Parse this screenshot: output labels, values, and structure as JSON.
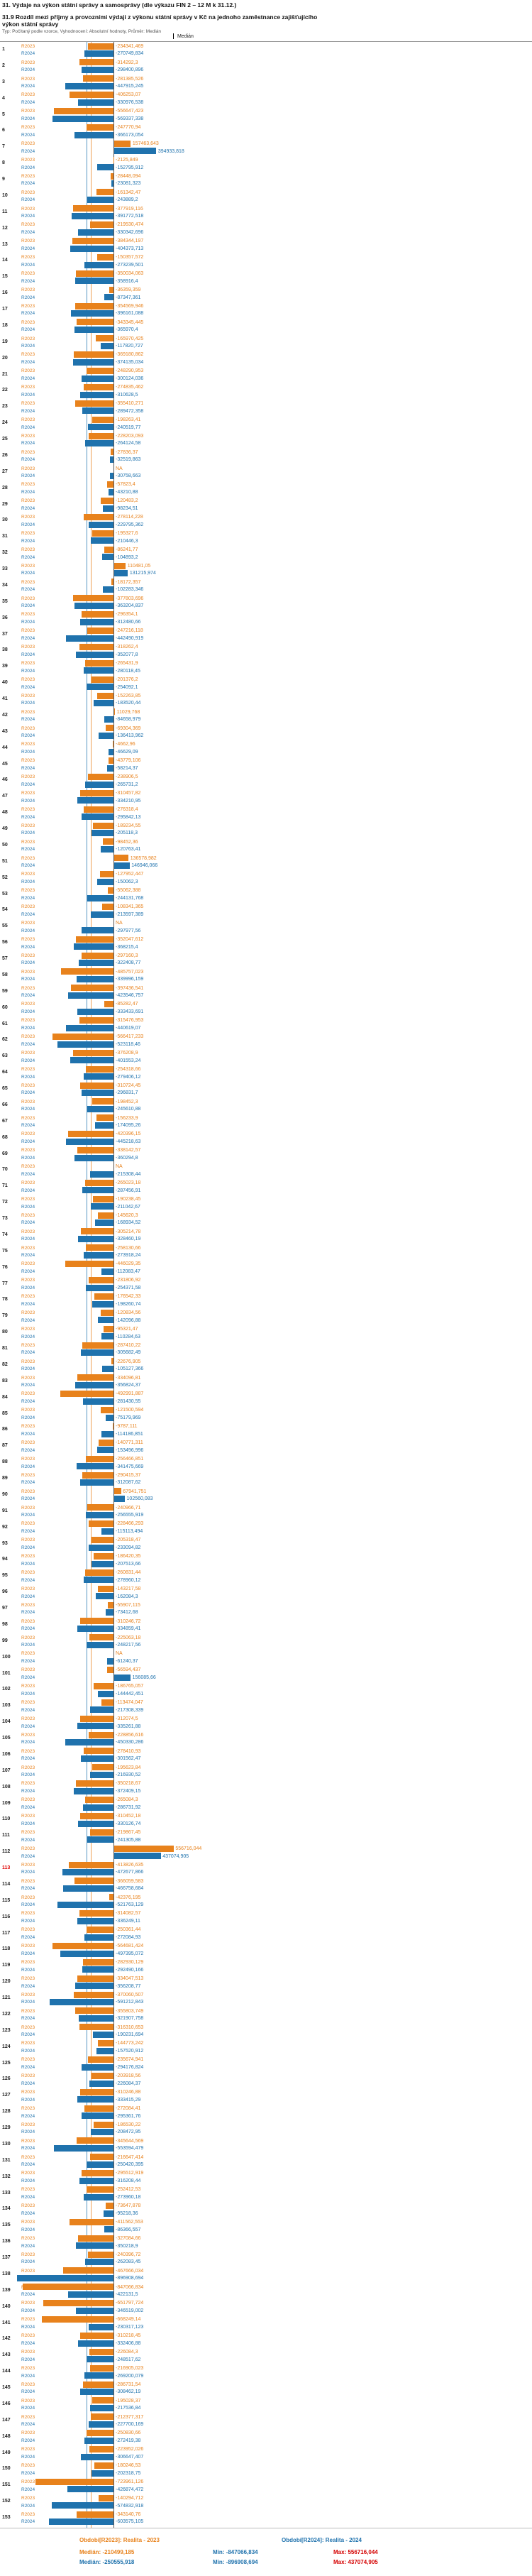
{
  "header": {
    "title_line1": "31. Výdaje na výkon státní správy a samosprávy (dle výkazu FIN 2 – 12 M k 31.12.)",
    "title_line2": "31.9 Rozdíl mezi příjmy a provozními výdaji z výkonu státní správy v Kč na jednoho zaměstnance zajišťujícího výkon státní správy",
    "subtitle": "Typ: Počítaný podle vzorce, Vyhodnocení: Absolutní hodnoty, Průměr: Medián"
  },
  "legend": {
    "median_label": "Medián"
  },
  "colors": {
    "r2023": "#e8821c",
    "r2024": "#1f72ad",
    "highlight_row": "#e00000",
    "min_text": "#1f72ad",
    "max_text": "#d40000",
    "axis": "#555555"
  },
  "footer": {
    "median_prefix": "Medián: ",
    "min_prefix": "Min: ",
    "max_prefix": "Max: "
  },
  "chart_data": {
    "type": "bar",
    "orientation": "horizontal",
    "title": "31.9 Rozdíl mezi příjmy a provozními výdaji z výkonu státní správy v Kč na jednoho zaměstnance zajišťujícího výkon státní správy",
    "unit": "Kč",
    "xlim": [
      -900000,
      600000
    ],
    "zero_line": 0,
    "grid": "median-lines",
    "legend_position": "bottom",
    "series_labels": [
      "R2023",
      "R2024"
    ],
    "highlighted_row": 113,
    "na_text": "NA",
    "summary": {
      "r2023": {
        "label": "Období[R2023]: Realita - 2023",
        "median": -210499.185,
        "min": -847066.834,
        "max": 556716.044
      },
      "r2024": {
        "label": "Období[R2024]: Realita - 2024",
        "median": -250555.918,
        "min": -896908.694,
        "max": 437074.905
      }
    },
    "rows": {
      "columns": [
        "row",
        "R2023",
        "R2024"
      ],
      "data": [
        [
          1,
          -234341.469,
          -270749.834
        ],
        [
          2,
          -314292.3,
          -298400.896
        ],
        [
          3,
          -281385.526,
          -447915.245
        ],
        [
          4,
          -406253.07,
          -330976.538
        ],
        [
          5,
          -556647.423,
          -569337.338
        ],
        [
          6,
          -247770.94,
          -366173.054
        ],
        [
          7,
          157463.643,
          394933.818
        ],
        [
          8,
          -2125.849,
          -152795.912
        ],
        [
          9,
          -28448.094,
          -23081.323
        ],
        [
          10,
          -161342.47,
          -243889.2
        ],
        [
          11,
          -377919.116,
          -391772.518
        ],
        [
          12,
          -219530.474,
          -330342.696
        ],
        [
          13,
          -384344.197,
          -404373.713
        ],
        [
          14,
          -150357.572,
          -273239.501
        ],
        [
          15,
          -350034.063,
          -358916.4
        ],
        [
          16,
          -36359.359,
          -87347.361
        ],
        [
          17,
          -354569.946,
          -396161.088
        ],
        [
          18,
          -343345.445,
          -365970.4
        ],
        [
          19,
          -165970.425,
          -117820.727
        ],
        [
          20,
          -369180.862,
          -374135.034
        ],
        [
          21,
          -248290.953,
          -300124.036
        ],
        [
          22,
          -274835.462,
          -310628.5
        ],
        [
          23,
          -355410.271,
          -289472.358
        ],
        [
          24,
          -198263.41,
          -240519.77
        ],
        [
          25,
          -228203.093,
          -264124.58
        ],
        [
          26,
          -27836.37,
          -32519.863
        ],
        [
          27,
          null,
          -30758.663
        ],
        [
          28,
          -57823.4,
          -43210.88
        ],
        [
          29,
          -120483.2,
          -98234.51
        ],
        [
          30,
          -278114.228,
          -229795.362
        ],
        [
          31,
          -195327.6,
          -210446.3
        ],
        [
          32,
          -86241.77,
          -104893.2
        ],
        [
          33,
          110481.05,
          131215.974
        ],
        [
          34,
          -18172.357,
          -102283.346
        ],
        [
          35,
          -377803.696,
          -363204.837
        ],
        [
          36,
          -296354.1,
          -312480.66
        ],
        [
          37,
          -247216.118,
          -442490.919
        ],
        [
          38,
          -318262.4,
          -352077.8
        ],
        [
          39,
          -265431.9,
          -280118.45
        ],
        [
          40,
          -201376.2,
          -254092.1
        ],
        [
          41,
          -152263.85,
          -183520.44
        ],
        [
          42,
          11029.768,
          -84658.979
        ],
        [
          43,
          -69304.369,
          -136413.962
        ],
        [
          44,
          -4662.96,
          -46629.09
        ],
        [
          45,
          -43779.106,
          -58214.37
        ],
        [
          46,
          -238906.5,
          -265731.2
        ],
        [
          47,
          -310457.82,
          -334210.95
        ],
        [
          48,
          -276318.4,
          -295842.13
        ],
        [
          49,
          -189234.55,
          -205118.3
        ],
        [
          50,
          -98452.36,
          -120763.41
        ],
        [
          51,
          136578.982,
          146946.066
        ],
        [
          52,
          -127952.447,
          -150062.3
        ],
        [
          53,
          -55062.388,
          -244131.768
        ],
        [
          54,
          -108341.365,
          -213597.389
        ],
        [
          55,
          null,
          -297977.56
        ],
        [
          56,
          -352047.612,
          -368215.4
        ],
        [
          57,
          -297160.3,
          -322408.77
        ],
        [
          58,
          -485757.023,
          -339996.159
        ],
        [
          59,
          -397436.541,
          -423546.757
        ],
        [
          60,
          -85282.47,
          -333433.691
        ],
        [
          61,
          -315476.953,
          -440619.07
        ],
        [
          62,
          -566417.233,
          -523118.46
        ],
        [
          63,
          -376208.9,
          -401553.24
        ],
        [
          64,
          -254318.66,
          -279406.12
        ],
        [
          65,
          -310724.45,
          -296831.7
        ],
        [
          66,
          -198452.3,
          -245610.88
        ],
        [
          67,
          -156233.9,
          -174095.26
        ],
        [
          68,
          -420396.15,
          -445218.63
        ],
        [
          69,
          -338142.57,
          -360294.8
        ],
        [
          70,
          null,
          -215308.44
        ],
        [
          71,
          -265023.18,
          -287456.91
        ],
        [
          72,
          -190238.45,
          -211042.67
        ],
        [
          73,
          -145620.3,
          -168934.52
        ],
        [
          74,
          -305214.78,
          -328460.19
        ],
        [
          75,
          -258130.66,
          -273918.24
        ],
        [
          76,
          -446029.35,
          -112083.47
        ],
        [
          77,
          -231806.92,
          -254371.58
        ],
        [
          78,
          -176542.33,
          -198260.74
        ],
        [
          79,
          -120834.56,
          -142096.88
        ],
        [
          80,
          -95321.47,
          -110284.63
        ],
        [
          81,
          -287410.22,
          -305682.49
        ],
        [
          82,
          -22676.905,
          -105127.366
        ],
        [
          83,
          -334096.81,
          -356824.37
        ],
        [
          84,
          -492991.887,
          -281430.55
        ],
        [
          85,
          -121500.594,
          -75179.969
        ],
        [
          86,
          -9787.111,
          -114186.851
        ],
        [
          87,
          -140771.311,
          -153496.996
        ],
        [
          88,
          -256466.851,
          -341475.669
        ],
        [
          89,
          -290415.37,
          -312087.62
        ],
        [
          90,
          67941.751,
          102560.083
        ],
        [
          91,
          -240966.71,
          -256555.919
        ],
        [
          92,
          -228466.293,
          -115113.494
        ],
        [
          93,
          -205318.47,
          -233094.82
        ],
        [
          94,
          -186420.35,
          -207513.66
        ],
        [
          95,
          -260831.44,
          -278960.12
        ],
        [
          96,
          -143217.58,
          -162084.3
        ],
        [
          97,
          -55907.115,
          -73412.68
        ],
        [
          98,
          -310246.72,
          -334859.41
        ],
        [
          99,
          -225063.18,
          -248217.56
        ],
        [
          100,
          null,
          -61240.37
        ],
        [
          101,
          -56594.437,
          156085.66
        ],
        [
          102,
          -186765.057,
          -144442.451
        ],
        [
          103,
          -113474.047,
          -217308.339
        ],
        [
          104,
          -312074.5,
          -335261.88
        ],
        [
          105,
          -228856.616,
          -450330.286
        ],
        [
          106,
          -278410.93,
          -301562.47
        ],
        [
          107,
          -195623.84,
          -216930.52
        ],
        [
          108,
          -350218.67,
          -372409.15
        ],
        [
          109,
          -265084.3,
          -286731.92
        ],
        [
          110,
          -310452.18,
          -330126.74
        ],
        [
          111,
          -219867.45,
          -241305.88
        ],
        [
          112,
          556716.044,
          437074.905
        ],
        [
          113,
          -413826.635,
          -472677.866
        ],
        [
          114,
          -366059.583,
          -466758.684
        ],
        [
          115,
          -42376.195,
          -521763.129
        ],
        [
          116,
          -314082.57,
          -336249.11
        ],
        [
          117,
          -250361.44,
          -272084.93
        ],
        [
          118,
          -564681.424,
          -497395.072
        ],
        [
          119,
          -282930.129,
          -292490.166
        ],
        [
          120,
          -334047.513,
          -356208.77
        ],
        [
          121,
          -370060.507,
          -591212.843
        ],
        [
          122,
          -355803.749,
          -321907.758
        ],
        [
          123,
          -316310.653,
          -190231.694
        ],
        [
          124,
          -144773.242,
          -157520.912
        ],
        [
          125,
          -235674.941,
          -294176.824
        ],
        [
          126,
          -203918.56,
          -226084.37
        ],
        [
          127,
          -310246.88,
          -333415.29
        ],
        [
          128,
          -272084.41,
          -295361.76
        ],
        [
          129,
          -186530.22,
          -208472.95
        ],
        [
          130,
          -345644.569,
          -553594.479
        ],
        [
          131,
          -216647.414,
          -250420.395
        ],
        [
          132,
          -295512.919,
          -316208.44
        ],
        [
          133,
          -252412.53,
          -273960.18
        ],
        [
          134,
          -73647.878,
          -95218.36
        ],
        [
          135,
          -411562.553,
          -86366.557
        ],
        [
          136,
          -327084.66,
          -350218.9
        ],
        [
          137,
          -240396.72,
          -262083.45
        ],
        [
          138,
          -467666.034,
          -896908.694
        ],
        [
          139,
          -847066.834,
          -422131.5
        ],
        [
          140,
          -651797.724,
          -346519.002
        ],
        [
          141,
          -668249.14,
          -230317.123
        ],
        [
          142,
          -310218.45,
          -332406.88
        ],
        [
          143,
          -226084.3,
          -248517.62
        ],
        [
          144,
          -216905.023,
          -269200.079
        ],
        [
          145,
          -286731.54,
          -308462.19
        ],
        [
          146,
          -195028.37,
          -217536.84
        ],
        [
          147,
          -212377.317,
          -227700.169
        ],
        [
          148,
          -250830.66,
          -272419.38
        ],
        [
          149,
          -223952.026,
          -306647.407
        ],
        [
          150,
          -180246.53,
          -202318.75
        ],
        [
          151,
          -723961.126,
          -426874.472
        ],
        [
          152,
          -140294.712,
          -574832.918
        ],
        [
          153,
          -343140.76,
          -603575.105
        ]
      ]
    }
  }
}
